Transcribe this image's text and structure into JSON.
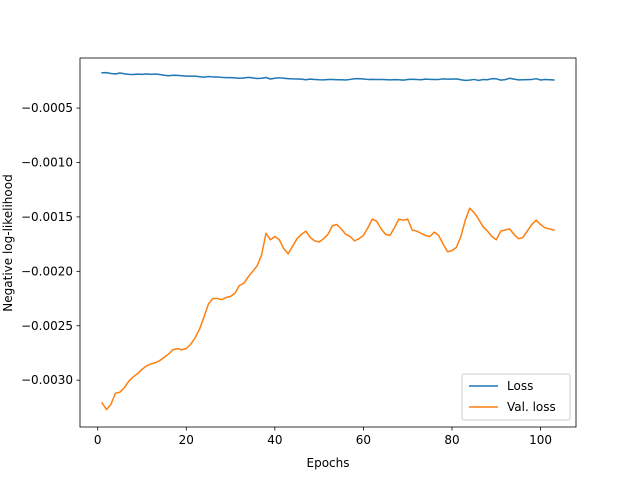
{
  "chart_data": {
    "type": "line",
    "title": "",
    "xlabel": "Epochs",
    "ylabel": "Negative log-likelihood",
    "xlim": [
      -4,
      108
    ],
    "ylim": [
      -0.00343,
      -4e-05
    ],
    "xticks": [
      0,
      20,
      40,
      60,
      80,
      100
    ],
    "xtick_labels": [
      "0",
      "20",
      "40",
      "60",
      "80",
      "100"
    ],
    "yticks": [
      -0.0005,
      -0.001,
      -0.0015,
      -0.002,
      -0.0025,
      -0.003
    ],
    "ytick_labels": [
      "−0.0005",
      "−0.0010",
      "−0.0015",
      "−0.0020",
      "−0.0025",
      "−0.0030"
    ],
    "grid": false,
    "legend_position": "lower-right",
    "series": [
      {
        "name": "Loss",
        "color": "#1f77b4",
        "x": [
          1,
          2,
          3,
          4,
          5,
          6,
          7,
          8,
          9,
          10,
          11,
          12,
          13,
          14,
          15,
          16,
          17,
          18,
          19,
          20,
          21,
          22,
          23,
          24,
          25,
          26,
          27,
          28,
          29,
          30,
          31,
          32,
          33,
          34,
          35,
          36,
          37,
          38,
          39,
          40,
          41,
          42,
          43,
          44,
          45,
          46,
          47,
          48,
          49,
          50,
          51,
          52,
          53,
          54,
          55,
          56,
          57,
          58,
          59,
          60,
          61,
          62,
          63,
          64,
          65,
          66,
          67,
          68,
          69,
          70,
          71,
          72,
          73,
          74,
          75,
          76,
          77,
          78,
          79,
          80,
          81,
          82,
          83,
          84,
          85,
          86,
          87,
          88,
          89,
          90,
          91,
          92,
          93,
          94,
          95,
          96,
          97,
          98,
          99,
          100,
          101,
          102,
          103
        ],
        "y": [
          -0.000176,
          -0.000174,
          -0.000182,
          -0.000187,
          -0.000178,
          -0.000185,
          -0.00019,
          -0.000192,
          -0.000188,
          -0.00019,
          -0.000186,
          -0.00019,
          -0.000187,
          -0.000192,
          -0.000198,
          -0.000203,
          -0.000198,
          -0.0002,
          -0.000203,
          -0.000206,
          -0.000207,
          -0.000206,
          -0.000212,
          -0.000216,
          -0.00021,
          -0.000214,
          -0.000214,
          -0.000218,
          -0.00022,
          -0.00022,
          -0.000223,
          -0.000226,
          -0.000224,
          -0.000218,
          -0.000223,
          -0.000228,
          -0.000226,
          -0.000219,
          -0.000233,
          -0.000226,
          -0.000222,
          -0.000226,
          -0.00023,
          -0.000232,
          -0.000233,
          -0.000234,
          -0.00024,
          -0.000234,
          -0.000238,
          -0.00024,
          -0.000241,
          -0.000238,
          -0.000238,
          -0.00024,
          -0.00024,
          -0.000242,
          -0.000237,
          -0.000231,
          -0.000229,
          -0.000233,
          -0.000237,
          -0.000236,
          -0.000238,
          -0.000237,
          -0.000239,
          -0.000241,
          -0.000239,
          -0.00024,
          -0.000243,
          -0.000238,
          -0.000235,
          -0.000238,
          -0.00024,
          -0.000234,
          -0.000236,
          -0.000238,
          -0.000237,
          -0.000232,
          -0.000234,
          -0.000234,
          -0.000232,
          -0.00024,
          -0.000246,
          -0.000243,
          -0.000237,
          -0.000246,
          -0.000238,
          -0.00024,
          -0.00023,
          -0.000231,
          -0.000243,
          -0.000239,
          -0.000226,
          -0.000234,
          -0.000241,
          -0.00024,
          -0.000239,
          -0.000238,
          -0.00023,
          -0.000242,
          -0.000238,
          -0.00024,
          -0.000242
        ]
      },
      {
        "name": "Val. loss",
        "color": "#ff7f0e",
        "x": [
          1,
          2,
          3,
          4,
          5,
          6,
          7,
          8,
          9,
          10,
          11,
          12,
          13,
          14,
          15,
          16,
          17,
          18,
          19,
          20,
          21,
          22,
          23,
          24,
          25,
          26,
          27,
          28,
          29,
          30,
          31,
          32,
          33,
          34,
          35,
          36,
          37,
          38,
          39,
          40,
          41,
          42,
          43,
          44,
          45,
          46,
          47,
          48,
          49,
          50,
          51,
          52,
          53,
          54,
          55,
          56,
          57,
          58,
          59,
          60,
          61,
          62,
          63,
          64,
          65,
          66,
          67,
          68,
          69,
          70,
          71,
          72,
          73,
          74,
          75,
          76,
          77,
          78,
          79,
          80,
          81,
          82,
          83,
          84,
          85,
          86,
          87,
          88,
          89,
          90,
          91,
          92,
          93,
          94,
          95,
          96,
          97,
          98,
          99,
          100,
          101,
          102,
          103
        ],
        "y": [
          -0.00321,
          -0.00327,
          -0.00322,
          -0.00312,
          -0.00311,
          -0.00307,
          -0.00301,
          -0.00297,
          -0.00294,
          -0.0029,
          -0.00287,
          -0.00285,
          -0.00284,
          -0.00282,
          -0.00279,
          -0.00276,
          -0.00272,
          -0.00271,
          -0.00272,
          -0.00271,
          -0.00267,
          -0.00261,
          -0.00253,
          -0.00242,
          -0.0023,
          -0.00225,
          -0.00225,
          -0.00226,
          -0.00224,
          -0.00223,
          -0.0022,
          -0.00213,
          -0.00211,
          -0.00205,
          -0.002,
          -0.00195,
          -0.00185,
          -0.00165,
          -0.00171,
          -0.00168,
          -0.00171,
          -0.00179,
          -0.00184,
          -0.00177,
          -0.0017,
          -0.00166,
          -0.00163,
          -0.00169,
          -0.00172,
          -0.00173,
          -0.0017,
          -0.00166,
          -0.00158,
          -0.00157,
          -0.00161,
          -0.00166,
          -0.00168,
          -0.00172,
          -0.0017,
          -0.00167,
          -0.0016,
          -0.00152,
          -0.00154,
          -0.00161,
          -0.00166,
          -0.00167,
          -0.0016,
          -0.00152,
          -0.00153,
          -0.00152,
          -0.00162,
          -0.00163,
          -0.00165,
          -0.00167,
          -0.00168,
          -0.00164,
          -0.00167,
          -0.00175,
          -0.00182,
          -0.00181,
          -0.00178,
          -0.00168,
          -0.00153,
          -0.00142,
          -0.00146,
          -0.00152,
          -0.00159,
          -0.00163,
          -0.00168,
          -0.00171,
          -0.00163,
          -0.00162,
          -0.00161,
          -0.00166,
          -0.0017,
          -0.00169,
          -0.00163,
          -0.00157,
          -0.00153,
          -0.00157,
          -0.0016,
          -0.00161,
          -0.00162
        ]
      }
    ]
  }
}
